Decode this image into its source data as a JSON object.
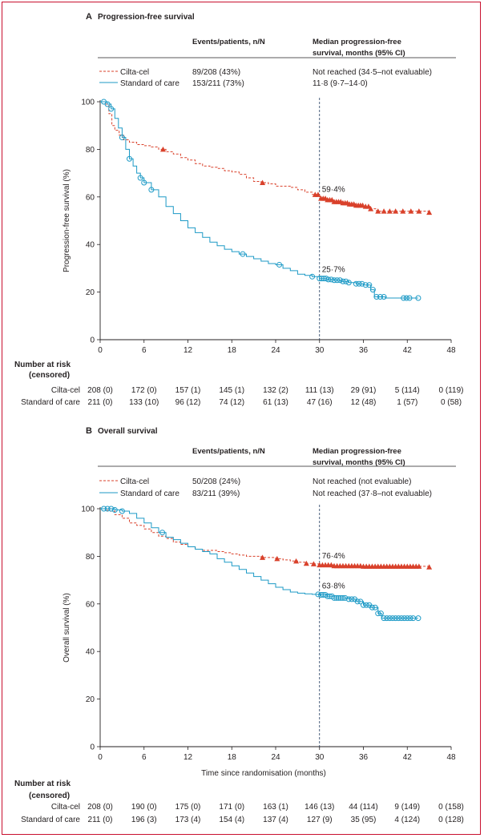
{
  "chart_data": [
    {
      "type": "line",
      "panel_letter": "A",
      "title": "Progression-free survival",
      "ylabel": "Progression-free survival (%)",
      "xlabel": "",
      "xlim": [
        0,
        48
      ],
      "ylim": [
        0,
        100
      ],
      "x_ticks": [
        "0",
        "6",
        "12",
        "18",
        "24",
        "30",
        "36",
        "42",
        "48"
      ],
      "y_ticks": [
        "0",
        "20",
        "40",
        "60",
        "80",
        "100"
      ],
      "reference_x": 30,
      "table_headers": [
        "Events/patients, n/N",
        "Median progression-free survival, months (95% CI)"
      ],
      "series": [
        {
          "name": "Cilta-cel",
          "color": "#d9412b",
          "style": "dashed",
          "marker": "triangle",
          "events_text": "89/208 (43%)",
          "median_text": "Not reached (34·5–not evaluable)",
          "annotation": "59·4%",
          "points": [
            [
              0,
              100
            ],
            [
              0.8,
              99
            ],
            [
              1.2,
              95
            ],
            [
              1.6,
              90
            ],
            [
              2,
              88
            ],
            [
              2.6,
              86
            ],
            [
              3.2,
              84
            ],
            [
              4,
              83
            ],
            [
              5,
              82
            ],
            [
              6,
              81.5
            ],
            [
              7,
              81
            ],
            [
              8,
              80
            ],
            [
              9,
              79
            ],
            [
              10,
              78
            ],
            [
              11,
              76.5
            ],
            [
              12,
              75.5
            ],
            [
              13,
              74
            ],
            [
              14,
              73
            ],
            [
              15,
              72.5
            ],
            [
              16,
              72
            ],
            [
              17,
              71
            ],
            [
              18,
              70.5
            ],
            [
              19,
              69.5
            ],
            [
              20,
              68
            ],
            [
              21,
              66.5
            ],
            [
              22,
              66
            ],
            [
              23,
              65.5
            ],
            [
              24,
              64.5
            ],
            [
              25,
              64.5
            ],
            [
              26,
              64
            ],
            [
              27,
              63
            ],
            [
              28,
              62
            ],
            [
              29,
              61
            ],
            [
              30,
              59.4
            ],
            [
              31,
              58.8
            ],
            [
              32,
              58
            ],
            [
              33,
              57.5
            ],
            [
              34,
              57
            ],
            [
              35,
              56.5
            ],
            [
              36,
              56
            ],
            [
              37,
              55
            ],
            [
              37.8,
              54
            ],
            [
              45,
              53.5
            ]
          ],
          "censored": [
            8.6,
            22.2,
            29.4,
            29.8,
            30.2,
            30.5,
            30.8,
            31.1,
            31.4,
            31.7,
            32,
            32.3,
            32.6,
            32.9,
            33.2,
            33.5,
            33.8,
            34.1,
            34.4,
            34.7,
            35,
            35.3,
            35.6,
            35.9,
            36.3,
            36.7,
            37,
            38,
            38.8,
            39.6,
            40.4,
            41.4,
            42.5,
            43.6,
            45
          ]
        },
        {
          "name": "Standard of care",
          "color": "#1d9ac6",
          "style": "solid",
          "marker": "circle",
          "events_text": "153/211 (73%)",
          "median_text": "11·8 (9·7–14·0)",
          "annotation": "25·7%",
          "points": [
            [
              0,
              100
            ],
            [
              1,
              99
            ],
            [
              1.5,
              97
            ],
            [
              2,
              93
            ],
            [
              2.5,
              89
            ],
            [
              3,
              85
            ],
            [
              3.5,
              80
            ],
            [
              4,
              76
            ],
            [
              4.5,
              73
            ],
            [
              5,
              70
            ],
            [
              5.5,
              68
            ],
            [
              6,
              66
            ],
            [
              7,
              63
            ],
            [
              8,
              60
            ],
            [
              9,
              56
            ],
            [
              10,
              53
            ],
            [
              11,
              50
            ],
            [
              12,
              47
            ],
            [
              13,
              45
            ],
            [
              14,
              43
            ],
            [
              15,
              41
            ],
            [
              16,
              39.5
            ],
            [
              17,
              38
            ],
            [
              18,
              37
            ],
            [
              19,
              36
            ],
            [
              20,
              35
            ],
            [
              21,
              34
            ],
            [
              22,
              33
            ],
            [
              23,
              32
            ],
            [
              24,
              31.5
            ],
            [
              25,
              30
            ],
            [
              26,
              29
            ],
            [
              27,
              27.5
            ],
            [
              28,
              27
            ],
            [
              29,
              26.5
            ],
            [
              30,
              25.7
            ],
            [
              31,
              25.3
            ],
            [
              32,
              25
            ],
            [
              33,
              24.5
            ],
            [
              34,
              24
            ],
            [
              35,
              23.5
            ],
            [
              36,
              23
            ],
            [
              37,
              21
            ],
            [
              37.5,
              18
            ],
            [
              39,
              17.5
            ],
            [
              43.5,
              17.5
            ]
          ],
          "censored": [
            0.5,
            1.0,
            1.5,
            3.0,
            4.0,
            5.5,
            6.0,
            7.0,
            19.5,
            24.5,
            29.0,
            30.0,
            30.3,
            30.6,
            30.9,
            31.2,
            31.6,
            32.0,
            32.4,
            32.8,
            33.2,
            33.6,
            34.0,
            35.0,
            35.4,
            35.8,
            36.3,
            36.8,
            37.3,
            37.8,
            38.3,
            38.8,
            41.5,
            41.9,
            42.3,
            43.5
          ]
        }
      ],
      "risk_table": {
        "header_line1": "Number at risk",
        "header_line2": "(censored)",
        "rows": [
          {
            "label": "Cilta-cel",
            "values": [
              "208 (0)",
              "172 (0)",
              "157 (1)",
              "145 (1)",
              "132 (2)",
              "111 (13)",
              "29 (91)",
              "5 (114)",
              "0 (119)"
            ]
          },
          {
            "label": "Standard of care",
            "values": [
              "211 (0)",
              "133 (10)",
              "96 (12)",
              "74 (12)",
              "61 (13)",
              "47 (16)",
              "12 (48)",
              "1 (57)",
              "0 (58)"
            ]
          }
        ]
      }
    },
    {
      "type": "line",
      "panel_letter": "B",
      "title": "Overall survival",
      "ylabel": "Overall survival (%)",
      "xlabel": "Time since randomisation (months)",
      "xlim": [
        0,
        48
      ],
      "ylim": [
        0,
        100
      ],
      "x_ticks": [
        "0",
        "6",
        "12",
        "18",
        "24",
        "30",
        "36",
        "42",
        "48"
      ],
      "y_ticks": [
        "0",
        "20",
        "40",
        "60",
        "80",
        "100"
      ],
      "reference_x": 30,
      "table_headers": [
        "Events/patients, n/N",
        "Median progression-free survival, months (95% CI)"
      ],
      "series": [
        {
          "name": "Cilta-cel",
          "color": "#d9412b",
          "style": "dashed",
          "marker": "triangle",
          "events_text": "50/208 (24%)",
          "median_text": "Not reached (not evaluable)",
          "annotation": "76·4%",
          "points": [
            [
              0,
              100
            ],
            [
              1,
              99
            ],
            [
              2,
              97.5
            ],
            [
              3,
              96
            ],
            [
              4,
              94
            ],
            [
              5,
              93
            ],
            [
              6,
              91.5
            ],
            [
              7,
              90
            ],
            [
              8,
              88.5
            ],
            [
              9,
              87.5
            ],
            [
              10,
              86
            ],
            [
              11,
              85
            ],
            [
              12,
              84
            ],
            [
              13,
              83
            ],
            [
              14,
              82.5
            ],
            [
              15,
              82.5
            ],
            [
              16,
              82
            ],
            [
              17,
              81.5
            ],
            [
              18,
              81
            ],
            [
              19,
              80.5
            ],
            [
              20,
              80
            ],
            [
              21,
              80
            ],
            [
              22,
              79.5
            ],
            [
              24,
              79
            ],
            [
              25,
              78.5
            ],
            [
              26,
              78
            ],
            [
              27,
              77.5
            ],
            [
              28,
              77
            ],
            [
              29,
              76.8
            ],
            [
              30,
              76.4
            ],
            [
              32,
              76
            ],
            [
              36,
              75.8
            ],
            [
              45,
              75.5
            ]
          ],
          "censored": [
            22.2,
            24.2,
            26.8,
            28.2,
            29.2,
            30.0,
            30.4,
            30.8,
            31.2,
            31.6,
            32.0,
            32.4,
            32.8,
            33.2,
            33.6,
            34.0,
            34.4,
            34.8,
            35.2,
            35.6,
            36.0,
            36.4,
            36.8,
            37.2,
            37.6,
            38.0,
            38.4,
            38.8,
            39.2,
            39.6,
            40.0,
            40.4,
            40.8,
            41.2,
            41.6,
            42.0,
            42.4,
            42.8,
            43.2,
            43.6,
            45.0
          ]
        },
        {
          "name": "Standard of care",
          "color": "#1d9ac6",
          "style": "solid",
          "marker": "circle",
          "events_text": "83/211 (39%)",
          "median_text": "Not reached (37·8–not evaluable)",
          "annotation": "63·8%",
          "points": [
            [
              0,
              100
            ],
            [
              1,
              100
            ],
            [
              2,
              99.5
            ],
            [
              3,
              99
            ],
            [
              4,
              98
            ],
            [
              5,
              96
            ],
            [
              6,
              94
            ],
            [
              7,
              92
            ],
            [
              8,
              90
            ],
            [
              9,
              88
            ],
            [
              10,
              87
            ],
            [
              11,
              85.5
            ],
            [
              12,
              84
            ],
            [
              13,
              83
            ],
            [
              14,
              82
            ],
            [
              15,
              81
            ],
            [
              16,
              79
            ],
            [
              17,
              77.5
            ],
            [
              18,
              76
            ],
            [
              19,
              74.5
            ],
            [
              20,
              73
            ],
            [
              21,
              71.5
            ],
            [
              22,
              70
            ],
            [
              23,
              68.5
            ],
            [
              24,
              67
            ],
            [
              25,
              66
            ],
            [
              26,
              65
            ],
            [
              27,
              64.5
            ],
            [
              28,
              64.2
            ],
            [
              29,
              64
            ],
            [
              30,
              63.8
            ],
            [
              31,
              63.2
            ],
            [
              32,
              62.5
            ],
            [
              34,
              62
            ],
            [
              35,
              61
            ],
            [
              36,
              59.5
            ],
            [
              37,
              58.5
            ],
            [
              37.8,
              58.5
            ],
            [
              38,
              56
            ],
            [
              38.5,
              54
            ],
            [
              43.5,
              54
            ]
          ],
          "censored": [
            0.5,
            1.0,
            1.5,
            2.0,
            3.0,
            8.5,
            29.8,
            30.2,
            30.5,
            30.8,
            31.1,
            31.4,
            31.7,
            32.0,
            32.3,
            32.6,
            32.9,
            33.2,
            33.5,
            34.0,
            34.4,
            34.8,
            35.2,
            35.6,
            36.0,
            36.4,
            36.8,
            37.2,
            37.6,
            38.0,
            38.4,
            38.8,
            39.2,
            39.6,
            40.0,
            40.4,
            40.8,
            41.2,
            41.6,
            42.0,
            42.4,
            42.8,
            43.5
          ]
        }
      ],
      "risk_table": {
        "header_line1": "Number at risk",
        "header_line2": "(censored)",
        "rows": [
          {
            "label": "Cilta-cel",
            "values": [
              "208 (0)",
              "190 (0)",
              "175 (0)",
              "171 (0)",
              "163 (1)",
              "146 (13)",
              "44 (114)",
              "9 (149)",
              "0 (158)"
            ]
          },
          {
            "label": "Standard of care",
            "values": [
              "211 (0)",
              "196 (3)",
              "173 (4)",
              "154 (4)",
              "137 (4)",
              "127 (9)",
              "35 (95)",
              "4 (124)",
              "0 (128)"
            ]
          }
        ]
      }
    }
  ]
}
